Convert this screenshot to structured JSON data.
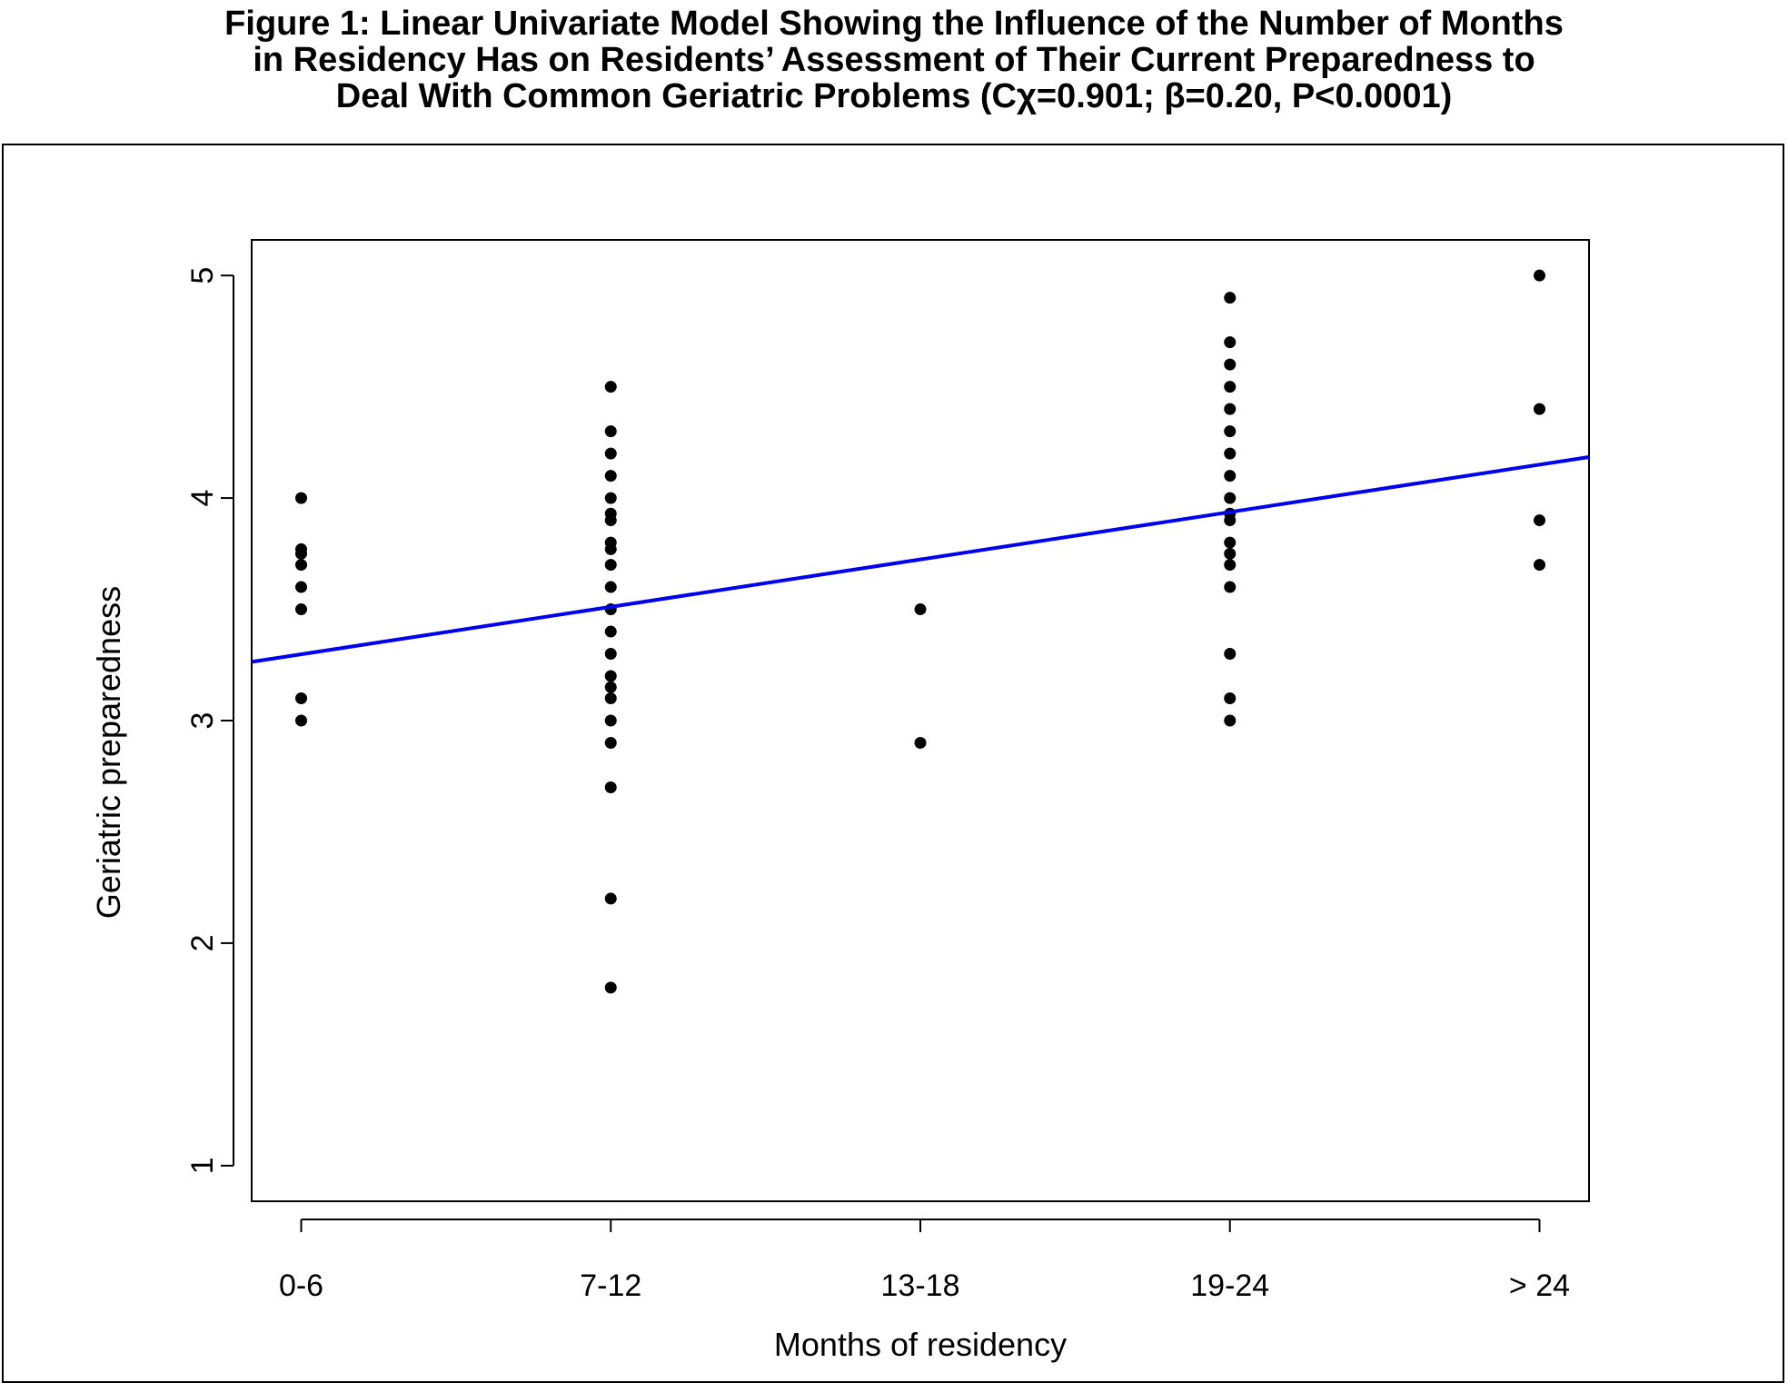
{
  "figure": {
    "title_lines": [
      "Figure 1: Linear Univariate Model Showing the Influence of the Number of Months",
      "in Residency Has on Residents’ Assessment of Their Current Preparedness to",
      "Deal With Common Geriatric Problems (Cχ=0.901; β=0.20, P<0.0001)"
    ]
  },
  "chart_data": {
    "type": "scatter",
    "title": "Figure 1: Linear Univariate Model Showing the Influence of the Number of Months in Residency Has on Residents’ Assessment of Their Current Preparedness to Deal With Common Geriatric Problems (Cχ=0.901; β=0.20, P<0.0001)",
    "xlabel": "Months of residency",
    "ylabel": "Geriatric preparedness",
    "categories": [
      "0-6",
      "7-12",
      "13-18",
      "19-24",
      "> 24"
    ],
    "yticks": [
      1,
      2,
      3,
      4,
      5
    ],
    "xlim": [
      0.84,
      5.16
    ],
    "ylim": [
      0.84,
      5.16
    ],
    "grid": false,
    "points": [
      {
        "x": 1,
        "y": 4.0
      },
      {
        "x": 1,
        "y": 3.77
      },
      {
        "x": 1,
        "y": 3.75
      },
      {
        "x": 1,
        "y": 3.7
      },
      {
        "x": 1,
        "y": 3.6
      },
      {
        "x": 1,
        "y": 3.5
      },
      {
        "x": 1,
        "y": 3.1
      },
      {
        "x": 1,
        "y": 3.0
      },
      {
        "x": 2,
        "y": 4.5
      },
      {
        "x": 2,
        "y": 4.3
      },
      {
        "x": 2,
        "y": 4.2
      },
      {
        "x": 2,
        "y": 4.1
      },
      {
        "x": 2,
        "y": 4.0
      },
      {
        "x": 2,
        "y": 3.93
      },
      {
        "x": 2,
        "y": 3.9
      },
      {
        "x": 2,
        "y": 3.8
      },
      {
        "x": 2,
        "y": 3.77
      },
      {
        "x": 2,
        "y": 3.7
      },
      {
        "x": 2,
        "y": 3.6
      },
      {
        "x": 2,
        "y": 3.5
      },
      {
        "x": 2,
        "y": 3.4
      },
      {
        "x": 2,
        "y": 3.3
      },
      {
        "x": 2,
        "y": 3.2
      },
      {
        "x": 2,
        "y": 3.15
      },
      {
        "x": 2,
        "y": 3.1
      },
      {
        "x": 2,
        "y": 3.0
      },
      {
        "x": 2,
        "y": 2.9
      },
      {
        "x": 2,
        "y": 2.7
      },
      {
        "x": 2,
        "y": 2.2
      },
      {
        "x": 2,
        "y": 1.8
      },
      {
        "x": 3,
        "y": 3.5
      },
      {
        "x": 3,
        "y": 2.9
      },
      {
        "x": 4,
        "y": 4.9
      },
      {
        "x": 4,
        "y": 4.7
      },
      {
        "x": 4,
        "y": 4.6
      },
      {
        "x": 4,
        "y": 4.5
      },
      {
        "x": 4,
        "y": 4.4
      },
      {
        "x": 4,
        "y": 4.3
      },
      {
        "x": 4,
        "y": 4.2
      },
      {
        "x": 4,
        "y": 4.1
      },
      {
        "x": 4,
        "y": 4.0
      },
      {
        "x": 4,
        "y": 3.93
      },
      {
        "x": 4,
        "y": 3.9
      },
      {
        "x": 4,
        "y": 3.8
      },
      {
        "x": 4,
        "y": 3.75
      },
      {
        "x": 4,
        "y": 3.7
      },
      {
        "x": 4,
        "y": 3.6
      },
      {
        "x": 4,
        "y": 3.3
      },
      {
        "x": 4,
        "y": 3.1
      },
      {
        "x": 4,
        "y": 3.0
      },
      {
        "x": 5,
        "y": 5.0
      },
      {
        "x": 5,
        "y": 4.4
      },
      {
        "x": 5,
        "y": 3.9
      },
      {
        "x": 5,
        "y": 3.7
      }
    ],
    "fit_line": {
      "intercept": 3.085,
      "slope": 0.213,
      "color": "#0000ee"
    },
    "point_color": "#000000"
  }
}
